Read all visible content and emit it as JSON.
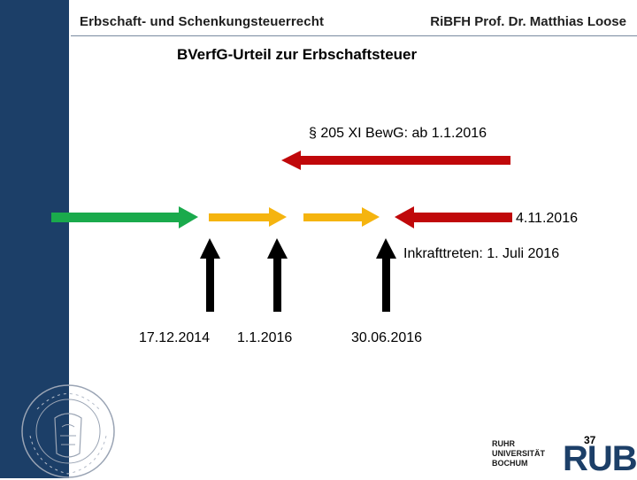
{
  "header": {
    "left": "Erbschaft- und Schenkungsteuerrecht",
    "right": "RiBFH Prof. Dr. Matthias Loose"
  },
  "title": "BVerfG-Urteil zur Erbschaftsteuer",
  "labels": {
    "paragraph": "§ 205 XI BewG: ab 1.1.2016",
    "date_nov": "4.11.2016",
    "inkrafttreten": "Inkrafttreten: 1. Juli 2016"
  },
  "timeline": {
    "dates": [
      "17.12.2014",
      "1.1.2016",
      "30.06.2016"
    ]
  },
  "colors": {
    "sidebar": "#1c3f68",
    "green": "#1aaa4c",
    "orange": "#f5b40f",
    "red": "#c0080a",
    "black": "#000000"
  },
  "footer": {
    "slide_number": "37",
    "university_lines": [
      "RUHR",
      "UNIVERSITÄT",
      "BOCHUM"
    ],
    "logo": "RUB"
  },
  "seal": {
    "text": "BOCHUM · RUHR-UNIVERSITÄT"
  }
}
